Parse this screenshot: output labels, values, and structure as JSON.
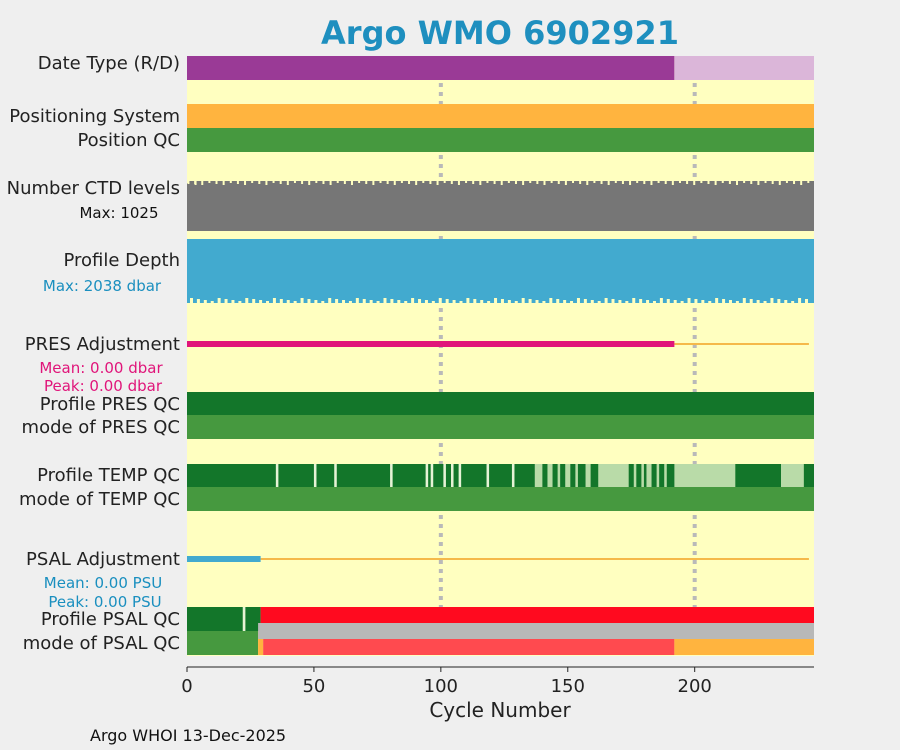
{
  "chart_data": {
    "type": "bar",
    "title": "Argo WMO 6902921",
    "xlabel": "Cycle Number",
    "xlim": [
      0,
      247
    ],
    "xticks": [
      0,
      50,
      100,
      150,
      200
    ],
    "grid_x": [
      100,
      200
    ],
    "footer": "Argo WHOI 13-Dec-2025",
    "rows": [
      {
        "label": "Date Type (R/D)",
        "segments": [
          {
            "from": 0,
            "to": 192,
            "color": "#9a3a96"
          },
          {
            "from": 192,
            "to": 247,
            "color": "#dbb6d9"
          }
        ]
      },
      {
        "label": "Positioning System",
        "segments": [
          {
            "from": 0,
            "to": 247,
            "color": "#ffb43f"
          }
        ]
      },
      {
        "label": "Position QC",
        "segments": [
          {
            "from": 0,
            "to": 247,
            "color": "#46993f"
          }
        ]
      },
      {
        "label": "Number CTD levels",
        "sublabel": "Max: 1025",
        "sublabel_color": "#111111",
        "segments": [
          {
            "from": 0,
            "to": 247,
            "color": "#767676"
          }
        ]
      },
      {
        "label": "Profile Depth",
        "sublabel": "Max: 2038 dbar",
        "sublabel_color": "#1a8fbf",
        "segments": [
          {
            "from": 0,
            "to": 247,
            "color": "#42aacf"
          }
        ]
      },
      {
        "label": "PRES Adjustment",
        "sublabels": [
          "Mean: 0.00 dbar",
          "Peak: 0.00 dbar"
        ],
        "sublabel_color": "#e0157a",
        "thick": {
          "from": 0,
          "to": 192,
          "color": "#e0157a"
        },
        "thin": {
          "from": 192,
          "to": 245,
          "color": "#f5b94a"
        }
      },
      {
        "label": "Profile PRES QC",
        "segments": [
          {
            "from": 0,
            "to": 247,
            "color": "#13762a"
          }
        ]
      },
      {
        "label": "mode of PRES QC",
        "segments": [
          {
            "from": 0,
            "to": 247,
            "color": "#46993f"
          }
        ]
      },
      {
        "label": "Profile TEMP QC",
        "segments": [
          {
            "from": 0,
            "to": 247,
            "color": "#13762a"
          },
          {
            "from": 137,
            "to": 140,
            "color": "#b9dba8"
          },
          {
            "from": 142,
            "to": 144,
            "color": "#b9dba8"
          },
          {
            "from": 146,
            "to": 147,
            "color": "#b9dba8"
          },
          {
            "from": 149,
            "to": 151,
            "color": "#b9dba8"
          },
          {
            "from": 153,
            "to": 154,
            "color": "#b9dba8"
          },
          {
            "from": 157,
            "to": 159,
            "color": "#b9dba8"
          },
          {
            "from": 162,
            "to": 174,
            "color": "#b9dba8"
          },
          {
            "from": 176,
            "to": 177,
            "color": "#b9dba8"
          },
          {
            "from": 179,
            "to": 180,
            "color": "#b9dba8"
          },
          {
            "from": 181,
            "to": 183,
            "color": "#b9dba8"
          },
          {
            "from": 185,
            "to": 186,
            "color": "#b9dba8"
          },
          {
            "from": 188,
            "to": 189,
            "color": "#b9dba8"
          },
          {
            "from": 192,
            "to": 216,
            "color": "#b9dba8"
          },
          {
            "from": 234,
            "to": 243,
            "color": "#b9dba8"
          },
          {
            "from": 35,
            "to": 36,
            "color": "#e6f3d6"
          },
          {
            "from": 50,
            "to": 51,
            "color": "#e6f3d6"
          },
          {
            "from": 58,
            "to": 59,
            "color": "#e6f3d6"
          },
          {
            "from": 80,
            "to": 81,
            "color": "#e6f3d6"
          },
          {
            "from": 94,
            "to": 95,
            "color": "#e6f3d6"
          },
          {
            "from": 96,
            "to": 97,
            "color": "#e6f3d6"
          },
          {
            "from": 101,
            "to": 102,
            "color": "#e6f3d6"
          },
          {
            "from": 104,
            "to": 105,
            "color": "#e6f3d6"
          },
          {
            "from": 107,
            "to": 108,
            "color": "#e6f3d6"
          },
          {
            "from": 118,
            "to": 119,
            "color": "#e6f3d6"
          },
          {
            "from": 128,
            "to": 129,
            "color": "#e6f3d6"
          }
        ]
      },
      {
        "label": "mode of TEMP QC",
        "segments": [
          {
            "from": 0,
            "to": 247,
            "color": "#46993f"
          }
        ]
      },
      {
        "label": "PSAL Adjustment",
        "sublabels": [
          "Mean: 0.00 PSU",
          "Peak: 0.00 PSU"
        ],
        "sublabel_color": "#1a8fbf",
        "thick": {
          "from": 0,
          "to": 29,
          "color": "#42aacf"
        },
        "thin": {
          "from": 29,
          "to": 245,
          "color": "#f5b94a"
        }
      },
      {
        "label": "Profile PSAL QC",
        "segments": [
          {
            "from": 0,
            "to": 22,
            "color": "#13762a"
          },
          {
            "from": 22,
            "to": 23,
            "color": "#e6f3d6"
          },
          {
            "from": 23,
            "to": 29,
            "color": "#13762a"
          },
          {
            "from": 29,
            "to": 247,
            "color": "#ff0a1f"
          }
        ]
      },
      {
        "label": "mode of PSAL QC",
        "segments": [
          {
            "from": 0,
            "to": 28,
            "color": "#46993f"
          },
          {
            "from": 28,
            "to": 30,
            "color": "#ffb43f"
          },
          {
            "from": 30,
            "to": 192,
            "color": "#ff4a4f"
          },
          {
            "from": 192,
            "to": 247,
            "color": "#ffb43f"
          }
        ]
      }
    ],
    "overlays": [
      {
        "row": "mode of PSAL QC",
        "from": 28,
        "to": 247,
        "color": "#b8b8b8",
        "part": "top"
      }
    ]
  }
}
